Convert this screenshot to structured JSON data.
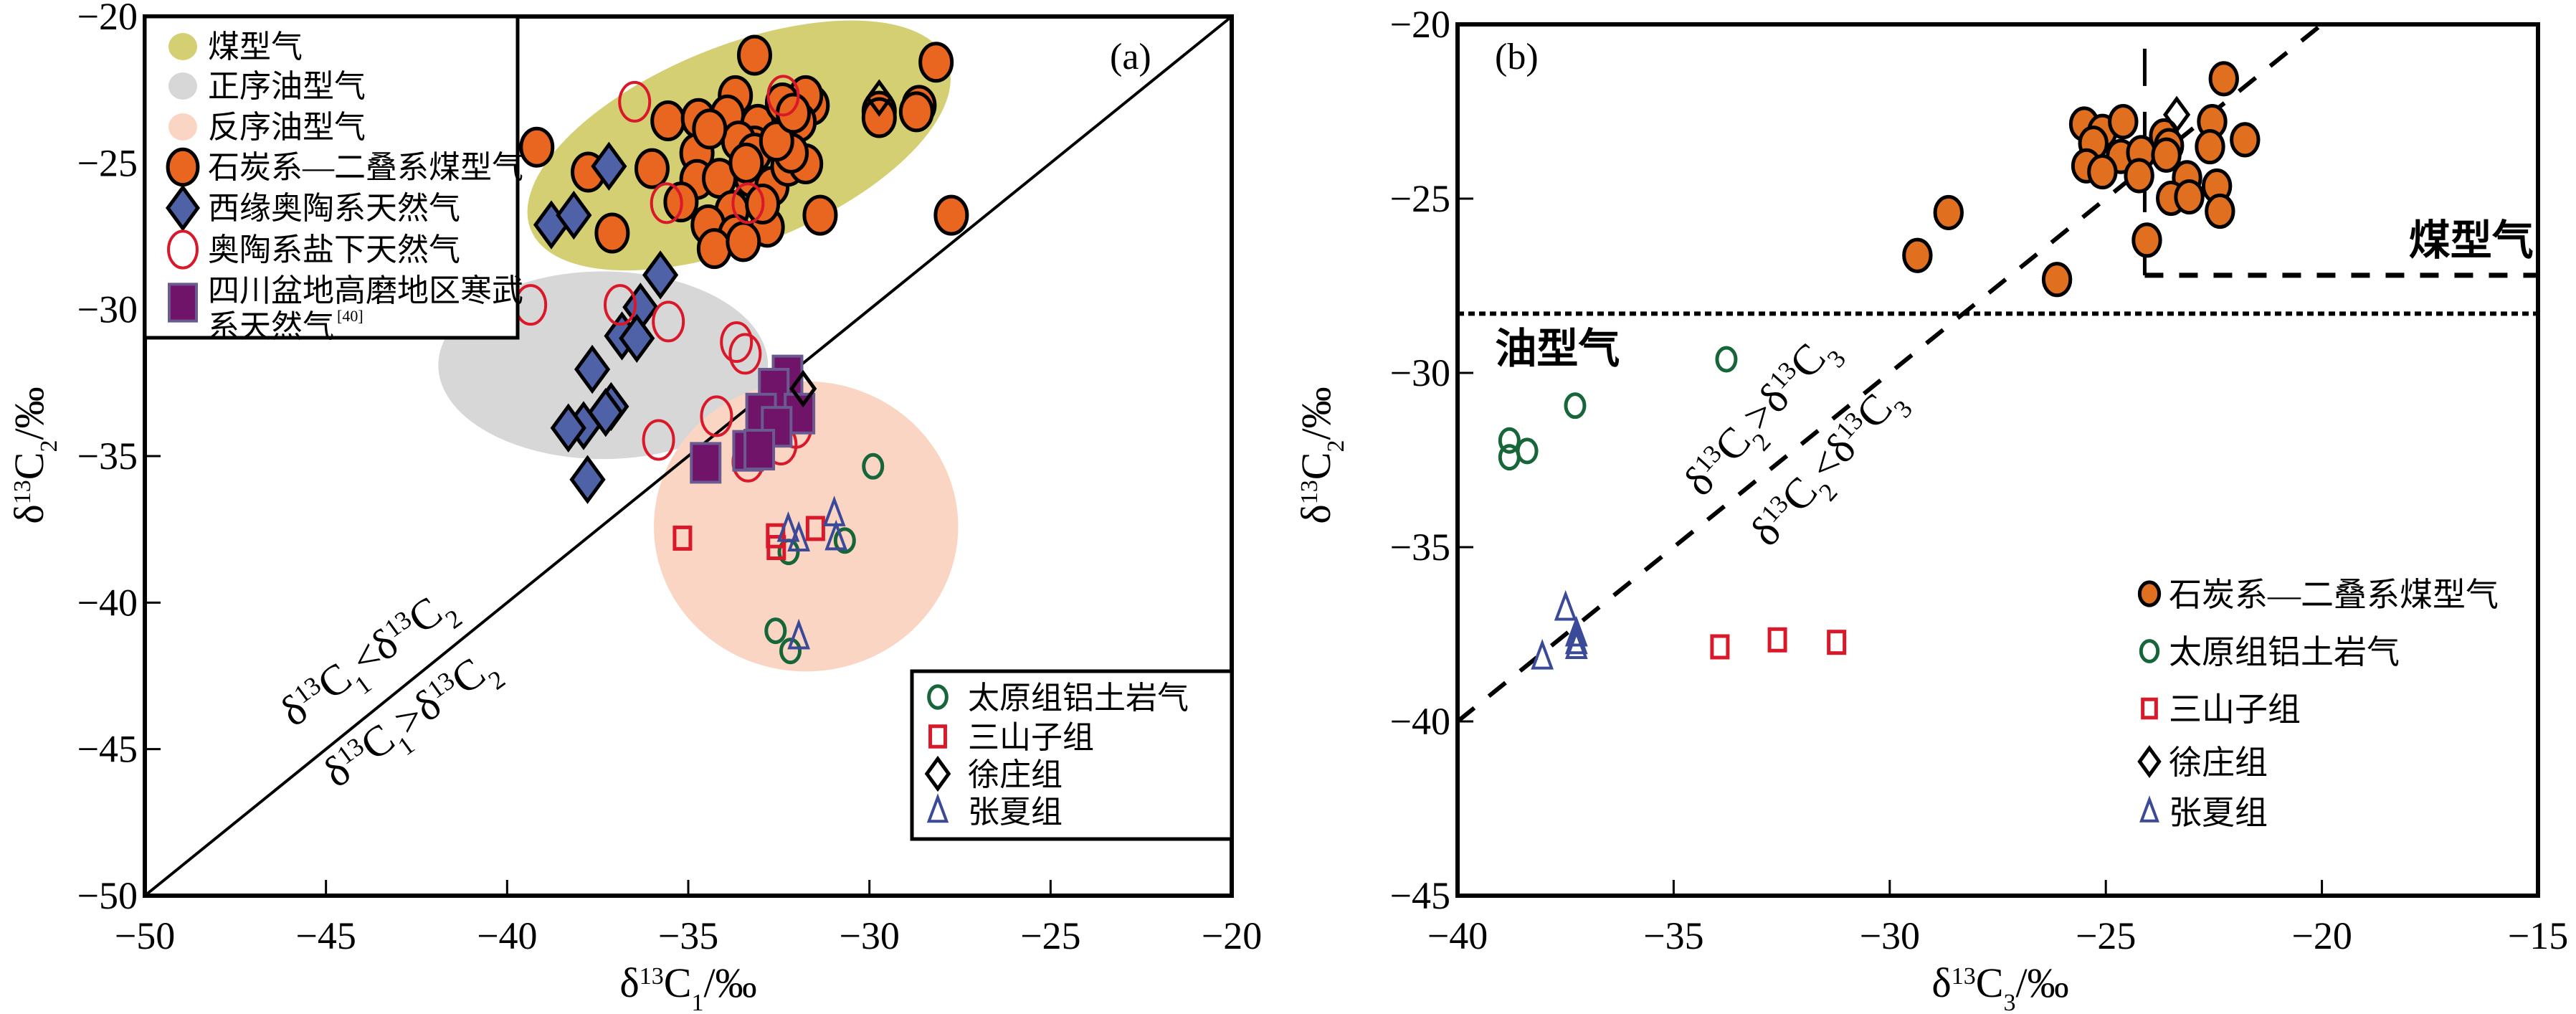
{
  "chart_data": [
    {
      "type": "scatter",
      "panel_label": "(a)",
      "xlabel": "δ13C1/‰",
      "ylabel": "δ13C2/‰",
      "xlim": [
        -50,
        -20
      ],
      "ylim": [
        -50,
        -20
      ],
      "xticks": [
        -50,
        -45,
        -40,
        -35,
        -30,
        -25,
        -20
      ],
      "yticks": [
        -50,
        -45,
        -40,
        -35,
        -30,
        -25,
        -20
      ],
      "xtick_labels": [
        "−50",
        "−45",
        "−40",
        "−35",
        "−30",
        "−25",
        "−20"
      ],
      "ytick_labels": [
        "−50",
        "−45",
        "−40",
        "−35",
        "−30",
        "−25",
        "−20"
      ],
      "grid": false,
      "reference_line": {
        "type": "y=x",
        "from": [
          -50,
          -50
        ],
        "to": [
          -20,
          -20
        ]
      },
      "relation_labels": {
        "upper": {
          "pre": "δ",
          "sup1": "13",
          "c1": "C",
          "sub1": "1",
          "op": "<",
          "sup2": "13",
          "c2": "C",
          "sub2": "2"
        },
        "lower": {
          "pre": "δ",
          "sup1": "13",
          "c1": "C",
          "sub1": "1",
          "op": ">",
          "sup2": "13",
          "c2": "C",
          "sub2": "2"
        }
      },
      "regions": [
        {
          "name": "煤型气",
          "color": "#d3cf72",
          "cx": -33.6,
          "cy": -24.4,
          "rx": 6.2,
          "ry": 3.4,
          "rotate_deg": -22
        },
        {
          "name": "正序油型气",
          "color": "#d7d7d7",
          "cx": -37.35,
          "cy": -31.9,
          "rx": 4.55,
          "ry": 3.2,
          "rotate_deg": 0
        },
        {
          "name": "反序油型气",
          "color": "#fbd5c3",
          "cx": -31.75,
          "cy": -37.4,
          "rx": 4.2,
          "ry": 4.95,
          "rotate_deg": 0
        }
      ],
      "legend_upper": {
        "position": "top-left",
        "items": [
          {
            "label": "煤型气",
            "marker": "region",
            "color": "#d3cf72"
          },
          {
            "label": "正序油型气",
            "marker": "region",
            "color": "#d7d7d7"
          },
          {
            "label": "反序油型气",
            "marker": "region",
            "color": "#fbd5c3"
          },
          {
            "label": "石炭系—二叠系煤型气",
            "marker": "filled-circle",
            "color": "#e8661f"
          },
          {
            "label": "西缘奥陶系天然气",
            "marker": "filled-diamond",
            "color": "#4f62a8"
          },
          {
            "label": "奥陶系盐下天然气",
            "marker": "open-circle",
            "color": "#d9182a"
          },
          {
            "label": "四川盆地高磨地区寒武",
            "label2": "系天然气",
            "ref": "[40]",
            "marker": "filled-square",
            "color": "#70146a"
          }
        ]
      },
      "legend_lower": {
        "position": "bottom-right",
        "items": [
          {
            "label": "太原组铝土岩气",
            "marker": "open-circle",
            "color": "#17663a"
          },
          {
            "label": "三山子组",
            "marker": "open-square",
            "color": "#d9182a"
          },
          {
            "label": "徐庄组",
            "marker": "open-diamond",
            "color": "#000000"
          },
          {
            "label": "张夏组",
            "marker": "open-triangle",
            "color": "#3a4a99"
          }
        ]
      },
      "series": [
        {
          "name": "石炭系—二叠系煤型气",
          "marker": "filled-circle",
          "color": "#e8661f",
          "points": [
            [
              -33.17,
              -21.32
            ],
            [
              -28.16,
              -21.56
            ],
            [
              -39.18,
              -24.46
            ],
            [
              -37.76,
              -25.31
            ],
            [
              -36.0,
              -25.19
            ],
            [
              -37.1,
              -27.39
            ],
            [
              -31.36,
              -26.78
            ],
            [
              -27.74,
              -26.78
            ],
            [
              -29.73,
              -23.23
            ],
            [
              -28.63,
              -23.03
            ],
            [
              -28.7,
              -23.25
            ],
            [
              -35.56,
              -23.56
            ],
            [
              -34.72,
              -23.48
            ],
            [
              -33.7,
              -22.7
            ],
            [
              -33.92,
              -23.36
            ],
            [
              -31.58,
              -23.03
            ],
            [
              -31.76,
              -22.7
            ],
            [
              -31.94,
              -23.6
            ],
            [
              -33.08,
              -23.68
            ],
            [
              -33.17,
              -24.42
            ],
            [
              -33.61,
              -24.25
            ],
            [
              -34.76,
              -24.66
            ],
            [
              -34.76,
              -25.56
            ],
            [
              -34.14,
              -25.52
            ],
            [
              -33.26,
              -25.48
            ],
            [
              -32.69,
              -25.8
            ],
            [
              -32.25,
              -25.11
            ],
            [
              -31.76,
              -25.03
            ],
            [
              -32.16,
              -24.66
            ],
            [
              -35.2,
              -26.33
            ],
            [
              -33.79,
              -26.62
            ],
            [
              -34.45,
              -27.11
            ],
            [
              -33.7,
              -27.44
            ],
            [
              -34.28,
              -27.92
            ],
            [
              -32.82,
              -27.19
            ],
            [
              -33.48,
              -27.68
            ],
            [
              -33.17,
              -24.66
            ],
            [
              -32.56,
              -24.25
            ],
            [
              -34.41,
              -23.84
            ],
            [
              -32.4,
              -22.95
            ],
            [
              -33.4,
              -25.0
            ],
            [
              -32.95,
              -26.4
            ],
            [
              -29.73,
              -23.45
            ],
            [
              -32.1,
              -23.3
            ]
          ]
        },
        {
          "name": "西缘奥陶系天然气",
          "marker": "filled-diamond",
          "color": "#4f62a8",
          "points": [
            [
              -37.19,
              -25.11
            ],
            [
              -38.78,
              -27.11
            ],
            [
              -38.16,
              -26.78
            ],
            [
              -35.77,
              -28.82
            ],
            [
              -36.32,
              -29.92
            ],
            [
              -36.83,
              -30.9
            ],
            [
              -36.42,
              -30.98
            ],
            [
              -37.65,
              -32.04
            ],
            [
              -37.13,
              -33.31
            ],
            [
              -37.28,
              -33.51
            ],
            [
              -37.89,
              -33.96
            ],
            [
              -38.31,
              -34.04
            ],
            [
              -37.78,
              -35.8
            ]
          ]
        },
        {
          "name": "奥陶系盐下天然气",
          "marker": "open-circle",
          "color": "#d9182a",
          "points": [
            [
              -36.48,
              -22.91
            ],
            [
              -32.38,
              -22.7
            ],
            [
              -35.6,
              -26.37
            ],
            [
              -33.35,
              -26.37
            ],
            [
              -39.35,
              -29.84
            ],
            [
              -36.88,
              -29.84
            ],
            [
              -35.55,
              -30.41
            ],
            [
              -33.67,
              -31.11
            ],
            [
              -33.43,
              -31.51
            ],
            [
              -34.22,
              -33.64
            ],
            [
              -35.82,
              -34.45
            ],
            [
              -32.03,
              -34.04
            ],
            [
              -32.44,
              -34.61
            ],
            [
              -33.35,
              -35.19
            ]
          ]
        },
        {
          "name": "四川盆地高磨地区寒武系天然气",
          "marker": "filled-square",
          "color": "#70146a",
          "points": [
            [
              -32.26,
              -32.25
            ],
            [
              -32.64,
              -32.7
            ],
            [
              -32.99,
              -33.55
            ],
            [
              -31.93,
              -33.55
            ],
            [
              -32.56,
              -34.0
            ],
            [
              -33.35,
              -34.82
            ],
            [
              -33.04,
              -34.78
            ],
            [
              -34.52,
              -35.23
            ]
          ]
        },
        {
          "name": "太原组铝土岩气",
          "marker": "open-circle-small",
          "color": "#17663a",
          "points": [
            [
              -29.9,
              -35.35
            ],
            [
              -32.23,
              -38.27
            ],
            [
              -30.68,
              -37.88
            ],
            [
              -32.59,
              -40.96
            ],
            [
              -32.18,
              -41.65
            ]
          ]
        },
        {
          "name": "三山子组",
          "marker": "open-square",
          "color": "#d9182a",
          "points": [
            [
              -35.16,
              -37.8
            ],
            [
              -32.59,
              -37.72
            ],
            [
              -32.57,
              -38.12
            ],
            [
              -31.49,
              -37.47
            ]
          ]
        },
        {
          "name": "徐庄组",
          "marker": "open-diamond",
          "color": "#000000",
          "points": [
            [
              -29.73,
              -22.78
            ],
            [
              -31.83,
              -32.7
            ]
          ]
        },
        {
          "name": "张夏组",
          "marker": "open-triangle",
          "color": "#3a4a99",
          "points": [
            [
              -32.24,
              -37.51
            ],
            [
              -31.95,
              -37.84
            ],
            [
              -30.97,
              -36.98
            ],
            [
              -30.92,
              -37.8
            ],
            [
              -31.95,
              -41.18
            ]
          ]
        }
      ]
    },
    {
      "type": "scatter",
      "panel_label": "(b)",
      "xlabel": "δ13C3/‰",
      "ylabel": "δ13C2/‰",
      "xlim": [
        -40,
        -15
      ],
      "ylim": [
        -45,
        -20
      ],
      "xticks": [
        -40,
        -35,
        -30,
        -25,
        -20,
        -15
      ],
      "yticks": [
        -45,
        -40,
        -35,
        -30,
        -25,
        -20
      ],
      "xtick_labels": [
        "−40",
        "−35",
        "−30",
        "−25",
        "−20",
        "−15"
      ],
      "ytick_labels": [
        "−45",
        "−40",
        "−35",
        "−30",
        "−25",
        "−20"
      ],
      "grid": false,
      "reference_line": {
        "type": "y=x dashed",
        "from": [
          -40,
          -40
        ],
        "to": [
          -20,
          -20
        ]
      },
      "boundary_lines": [
        {
          "style": "dotted",
          "orientation": "horizontal",
          "y": -28.3,
          "x_range": [
            -40,
            -15
          ]
        },
        {
          "style": "dashed",
          "orientation": "horizontal",
          "y": -27.2,
          "x_range": [
            -24.1,
            -15
          ]
        },
        {
          "style": "dashed",
          "orientation": "vertical",
          "x": -24.1,
          "y_range": [
            -27.2,
            -20
          ]
        }
      ],
      "region_labels": [
        {
          "text": "煤型气",
          "x": -16.0,
          "y": -26.6
        },
        {
          "text": "油型气",
          "x": -38.8,
          "y": -29.3
        }
      ],
      "relation_labels": {
        "upper": {
          "pre": "δ",
          "sup1": "13",
          "c1": "C",
          "sub1": "2",
          "op": ">",
          "sup2": "13",
          "c2": "C",
          "sub2": "3"
        },
        "lower": {
          "pre": "δ",
          "sup1": "13",
          "c1": "C",
          "sub1": "2",
          "op": "<",
          "sup2": "13",
          "c2": "C",
          "sub2": "3"
        }
      },
      "legend": {
        "position": "bottom-right",
        "items": [
          {
            "label": "石炭系—二叠系煤型气",
            "marker": "filled-circle",
            "color": "#e07020"
          },
          {
            "label": "太原组铝土岩气",
            "marker": "open-circle",
            "color": "#17663a"
          },
          {
            "label": "三山子组",
            "marker": "open-square",
            "color": "#d9182a"
          },
          {
            "label": "徐庄组",
            "marker": "open-diamond",
            "color": "#000000"
          },
          {
            "label": "张夏组",
            "marker": "open-triangle",
            "color": "#3a4a99"
          }
        ]
      },
      "series": [
        {
          "name": "石炭系—二叠系煤型气",
          "marker": "filled-circle",
          "color": "#e07020",
          "points": [
            [
              -22.27,
              -21.56
            ],
            [
              -25.5,
              -22.86
            ],
            [
              -25.08,
              -23.07
            ],
            [
              -24.6,
              -22.79
            ],
            [
              -25.29,
              -23.41
            ],
            [
              -23.65,
              -23.2
            ],
            [
              -23.54,
              -23.48
            ],
            [
              -22.54,
              -22.79
            ],
            [
              -22.59,
              -23.51
            ],
            [
              -21.78,
              -23.31
            ],
            [
              -24.65,
              -23.79
            ],
            [
              -24.18,
              -23.68
            ],
            [
              -25.45,
              -24.06
            ],
            [
              -25.08,
              -24.23
            ],
            [
              -24.23,
              -24.34
            ],
            [
              -23.12,
              -24.4
            ],
            [
              -22.43,
              -24.64
            ],
            [
              -23.49,
              -24.99
            ],
            [
              -23.07,
              -24.95
            ],
            [
              -22.36,
              -25.36
            ],
            [
              -28.64,
              -25.4
            ],
            [
              -29.36,
              -26.63
            ],
            [
              -26.13,
              -27.32
            ],
            [
              -24.05,
              -26.19
            ],
            [
              -23.6,
              -23.75
            ]
          ]
        },
        {
          "name": "太原组铝土岩气",
          "marker": "open-circle",
          "color": "#17663a",
          "points": [
            [
              -33.78,
              -29.61
            ],
            [
              -37.28,
              -30.94
            ],
            [
              -38.8,
              -31.94
            ],
            [
              -38.39,
              -32.24
            ],
            [
              -38.8,
              -32.42
            ]
          ]
        },
        {
          "name": "三山子组",
          "marker": "open-square",
          "color": "#d9182a",
          "points": [
            [
              -33.93,
              -37.86
            ],
            [
              -32.6,
              -37.66
            ],
            [
              -31.23,
              -37.73
            ]
          ]
        },
        {
          "name": "徐庄组",
          "marker": "open-diamond",
          "color": "#000000",
          "points": [
            [
              -23.36,
              -22.59
            ]
          ]
        },
        {
          "name": "张夏组",
          "marker": "open-triangle",
          "color": "#3a4a99",
          "points": [
            [
              -37.5,
              -36.76
            ],
            [
              -37.25,
              -37.5
            ],
            [
              -37.25,
              -37.72
            ],
            [
              -37.25,
              -37.86
            ],
            [
              -38.04,
              -38.16
            ]
          ]
        }
      ]
    }
  ]
}
